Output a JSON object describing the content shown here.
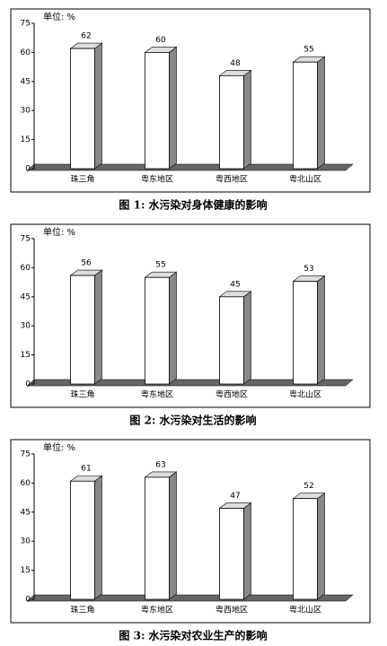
{
  "chart_data": [
    {
      "type": "bar3d",
      "title": "图 1: 水污染对身体健康的影响",
      "unit_label": "单位: %",
      "categories": [
        "珠三角",
        "粤东地区",
        "粤西地区",
        "粤北山区"
      ],
      "values": [
        62,
        60,
        48,
        55
      ],
      "ylim": [
        0,
        75
      ],
      "yticks": [
        0,
        15,
        30,
        45,
        60,
        75
      ],
      "color": "#ffffff"
    },
    {
      "type": "bar3d",
      "title": "图 2: 水污染对生活的影响",
      "unit_label": "单位: %",
      "categories": [
        "珠三角",
        "粤东地区",
        "粤西地区",
        "粤北山区"
      ],
      "values": [
        56,
        55,
        45,
        53
      ],
      "ylim": [
        0,
        75
      ],
      "yticks": [
        0,
        15,
        30,
        45,
        60,
        75
      ],
      "color": "#ffffff"
    },
    {
      "type": "bar3d",
      "title": "图 3: 水污染对农业生产的影响",
      "unit_label": "单位: %",
      "categories": [
        "珠三角",
        "粤东地区",
        "粤西地区",
        "粤北山区"
      ],
      "values": [
        61,
        63,
        47,
        52
      ],
      "ylim": [
        0,
        75
      ],
      "yticks": [
        0,
        15,
        30,
        45,
        60,
        75
      ],
      "color": "#ffffff"
    }
  ]
}
